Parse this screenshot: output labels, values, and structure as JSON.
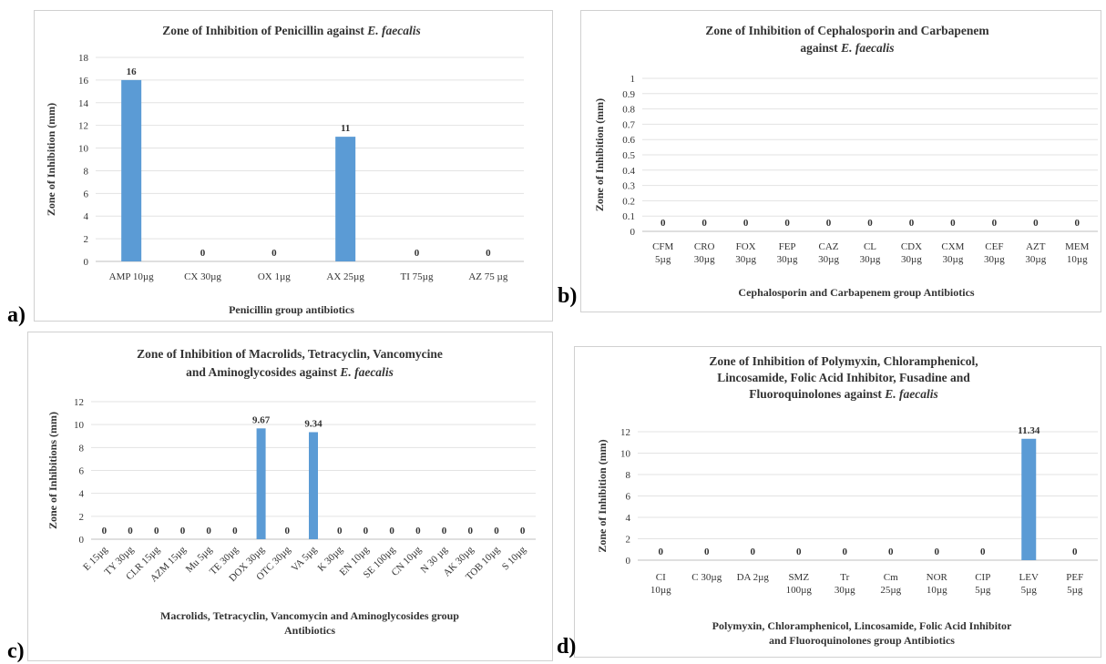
{
  "panels": {
    "a": {
      "label": "a)"
    },
    "b": {
      "label": "b)"
    },
    "c": {
      "label": "c)"
    },
    "d": {
      "label": "d)"
    }
  },
  "chart_data": [
    {
      "id": "a",
      "type": "bar",
      "title_lines": [
        [
          "Zone of Inhibition of Penicillin against ",
          "E. faecalis"
        ]
      ],
      "xlabel_lines": [
        "Penicillin group antibiotics"
      ],
      "ylabel": "Zone of Inhibition (mm)",
      "categories": [
        [
          "AMP 10µg"
        ],
        [
          "CX 30µg"
        ],
        [
          "OX 1µg"
        ],
        [
          "AX 25µg"
        ],
        [
          "TI 75µg"
        ],
        [
          "AZ 75 µg"
        ]
      ],
      "values": [
        16,
        0,
        0,
        11,
        0,
        0
      ],
      "data_labels": [
        "16",
        "0",
        "0",
        "11",
        "0",
        "0"
      ],
      "ylim": [
        0,
        18
      ],
      "yticks": [
        "0",
        "2",
        "4",
        "6",
        "8",
        "10",
        "12",
        "14",
        "16",
        "18"
      ],
      "rotate_x": false,
      "color": "#5b9bd5"
    },
    {
      "id": "b",
      "type": "bar",
      "title_lines": [
        [
          "Zone of Inhibition of Cephalosporin and Carbapenem"
        ],
        [
          "against ",
          "E. faecalis"
        ]
      ],
      "xlabel_lines": [
        "Cephalosporin and Carbapenem group Antibiotics"
      ],
      "ylabel": "Zone of Inhibition (mm)",
      "categories": [
        [
          "CFM",
          "5µg"
        ],
        [
          "CRO",
          "30µg"
        ],
        [
          "FOX",
          "30µg"
        ],
        [
          "FEP",
          "30µg"
        ],
        [
          "CAZ",
          "30µg"
        ],
        [
          "CL",
          "30µg"
        ],
        [
          "CDX",
          "30µg"
        ],
        [
          "CXM",
          "30µg"
        ],
        [
          "CEF",
          "30µg"
        ],
        [
          "AZT",
          "30µg"
        ],
        [
          "MEM",
          "10µg"
        ]
      ],
      "values": [
        0,
        0,
        0,
        0,
        0,
        0,
        0,
        0,
        0,
        0,
        0
      ],
      "data_labels": [
        "0",
        "0",
        "0",
        "0",
        "0",
        "0",
        "0",
        "0",
        "0",
        "0",
        "0"
      ],
      "ylim": [
        0,
        1
      ],
      "yticks": [
        "0",
        "0.1",
        "0.2",
        "0.3",
        "0.4",
        "0.5",
        "0.6",
        "0.7",
        "0.8",
        "0.9",
        "1"
      ],
      "rotate_x": false,
      "color": "#5b9bd5"
    },
    {
      "id": "c",
      "type": "bar",
      "title_lines": [
        [
          "Zone of Inhibition of Macrolids, Tetracyclin, Vancomycine"
        ],
        [
          "and Aminoglycosides against ",
          "E. faecalis"
        ]
      ],
      "xlabel_lines": [
        "Macrolids, Tetracyclin, Vancomycin and Aminoglycosides group",
        "Antibiotics"
      ],
      "ylabel": "Zone of Inhibitions (mm)",
      "categories": [
        [
          "E 15µg"
        ],
        [
          "TY 30µg"
        ],
        [
          "CLR 15µg"
        ],
        [
          "AZM 15µg"
        ],
        [
          "Mu 5µg"
        ],
        [
          "TE 30µg"
        ],
        [
          "DOX 30µg"
        ],
        [
          "OTC 30µg"
        ],
        [
          "VA 5µg"
        ],
        [
          "K 30µg"
        ],
        [
          "EN 10µg"
        ],
        [
          "SE 100µg"
        ],
        [
          "CN 10µg"
        ],
        [
          "N 30 µg"
        ],
        [
          "AK 30µg"
        ],
        [
          "TOB 10µg"
        ],
        [
          "S 10µg"
        ]
      ],
      "values": [
        0,
        0,
        0,
        0,
        0,
        0,
        9.67,
        0,
        9.34,
        0,
        0,
        0,
        0,
        0,
        0,
        0,
        0
      ],
      "data_labels": [
        "0",
        "0",
        "0",
        "0",
        "0",
        "0",
        "9.67",
        "0",
        "9.34",
        "0",
        "0",
        "0",
        "0",
        "0",
        "0",
        "0",
        "0"
      ],
      "ylim": [
        0,
        12
      ],
      "yticks": [
        "0",
        "2",
        "4",
        "6",
        "8",
        "10",
        "12"
      ],
      "rotate_x": true,
      "color": "#5b9bd5"
    },
    {
      "id": "d",
      "type": "bar",
      "title_lines": [
        [
          "Zone of Inhibition of Polymyxin, Chloramphenicol,"
        ],
        [
          "Lincosamide, Folic Acid Inhibitor, Fusadine and"
        ],
        [
          "Fluoroquinolones against ",
          "E. faecalis"
        ]
      ],
      "xlabel_lines": [
        "Polymyxin, Chloramphenicol, Lincosamide, Folic Acid Inhibitor",
        "and Fluoroquinolones group Antibiotics"
      ],
      "ylabel": "Zone of Inhibition (mm)",
      "categories": [
        [
          "CI",
          "10µg"
        ],
        [
          "C 30µg"
        ],
        [
          "DA 2µg"
        ],
        [
          "SMZ",
          "100µg"
        ],
        [
          "Tr",
          "30µg"
        ],
        [
          "Cm",
          "25µg"
        ],
        [
          "NOR",
          "10µg"
        ],
        [
          "CIP",
          "5µg"
        ],
        [
          "LEV",
          "5µg"
        ],
        [
          "PEF",
          "5µg"
        ]
      ],
      "values": [
        0,
        0,
        0,
        0,
        0,
        0,
        0,
        0,
        11.34,
        0
      ],
      "data_labels": [
        "0",
        "0",
        "0",
        "0",
        "0",
        "0",
        "0",
        "0",
        "11.34",
        "0"
      ],
      "ylim": [
        0,
        12
      ],
      "yticks": [
        "0",
        "2",
        "4",
        "6",
        "8",
        "10",
        "12"
      ],
      "rotate_x": false,
      "color": "#5b9bd5"
    }
  ]
}
